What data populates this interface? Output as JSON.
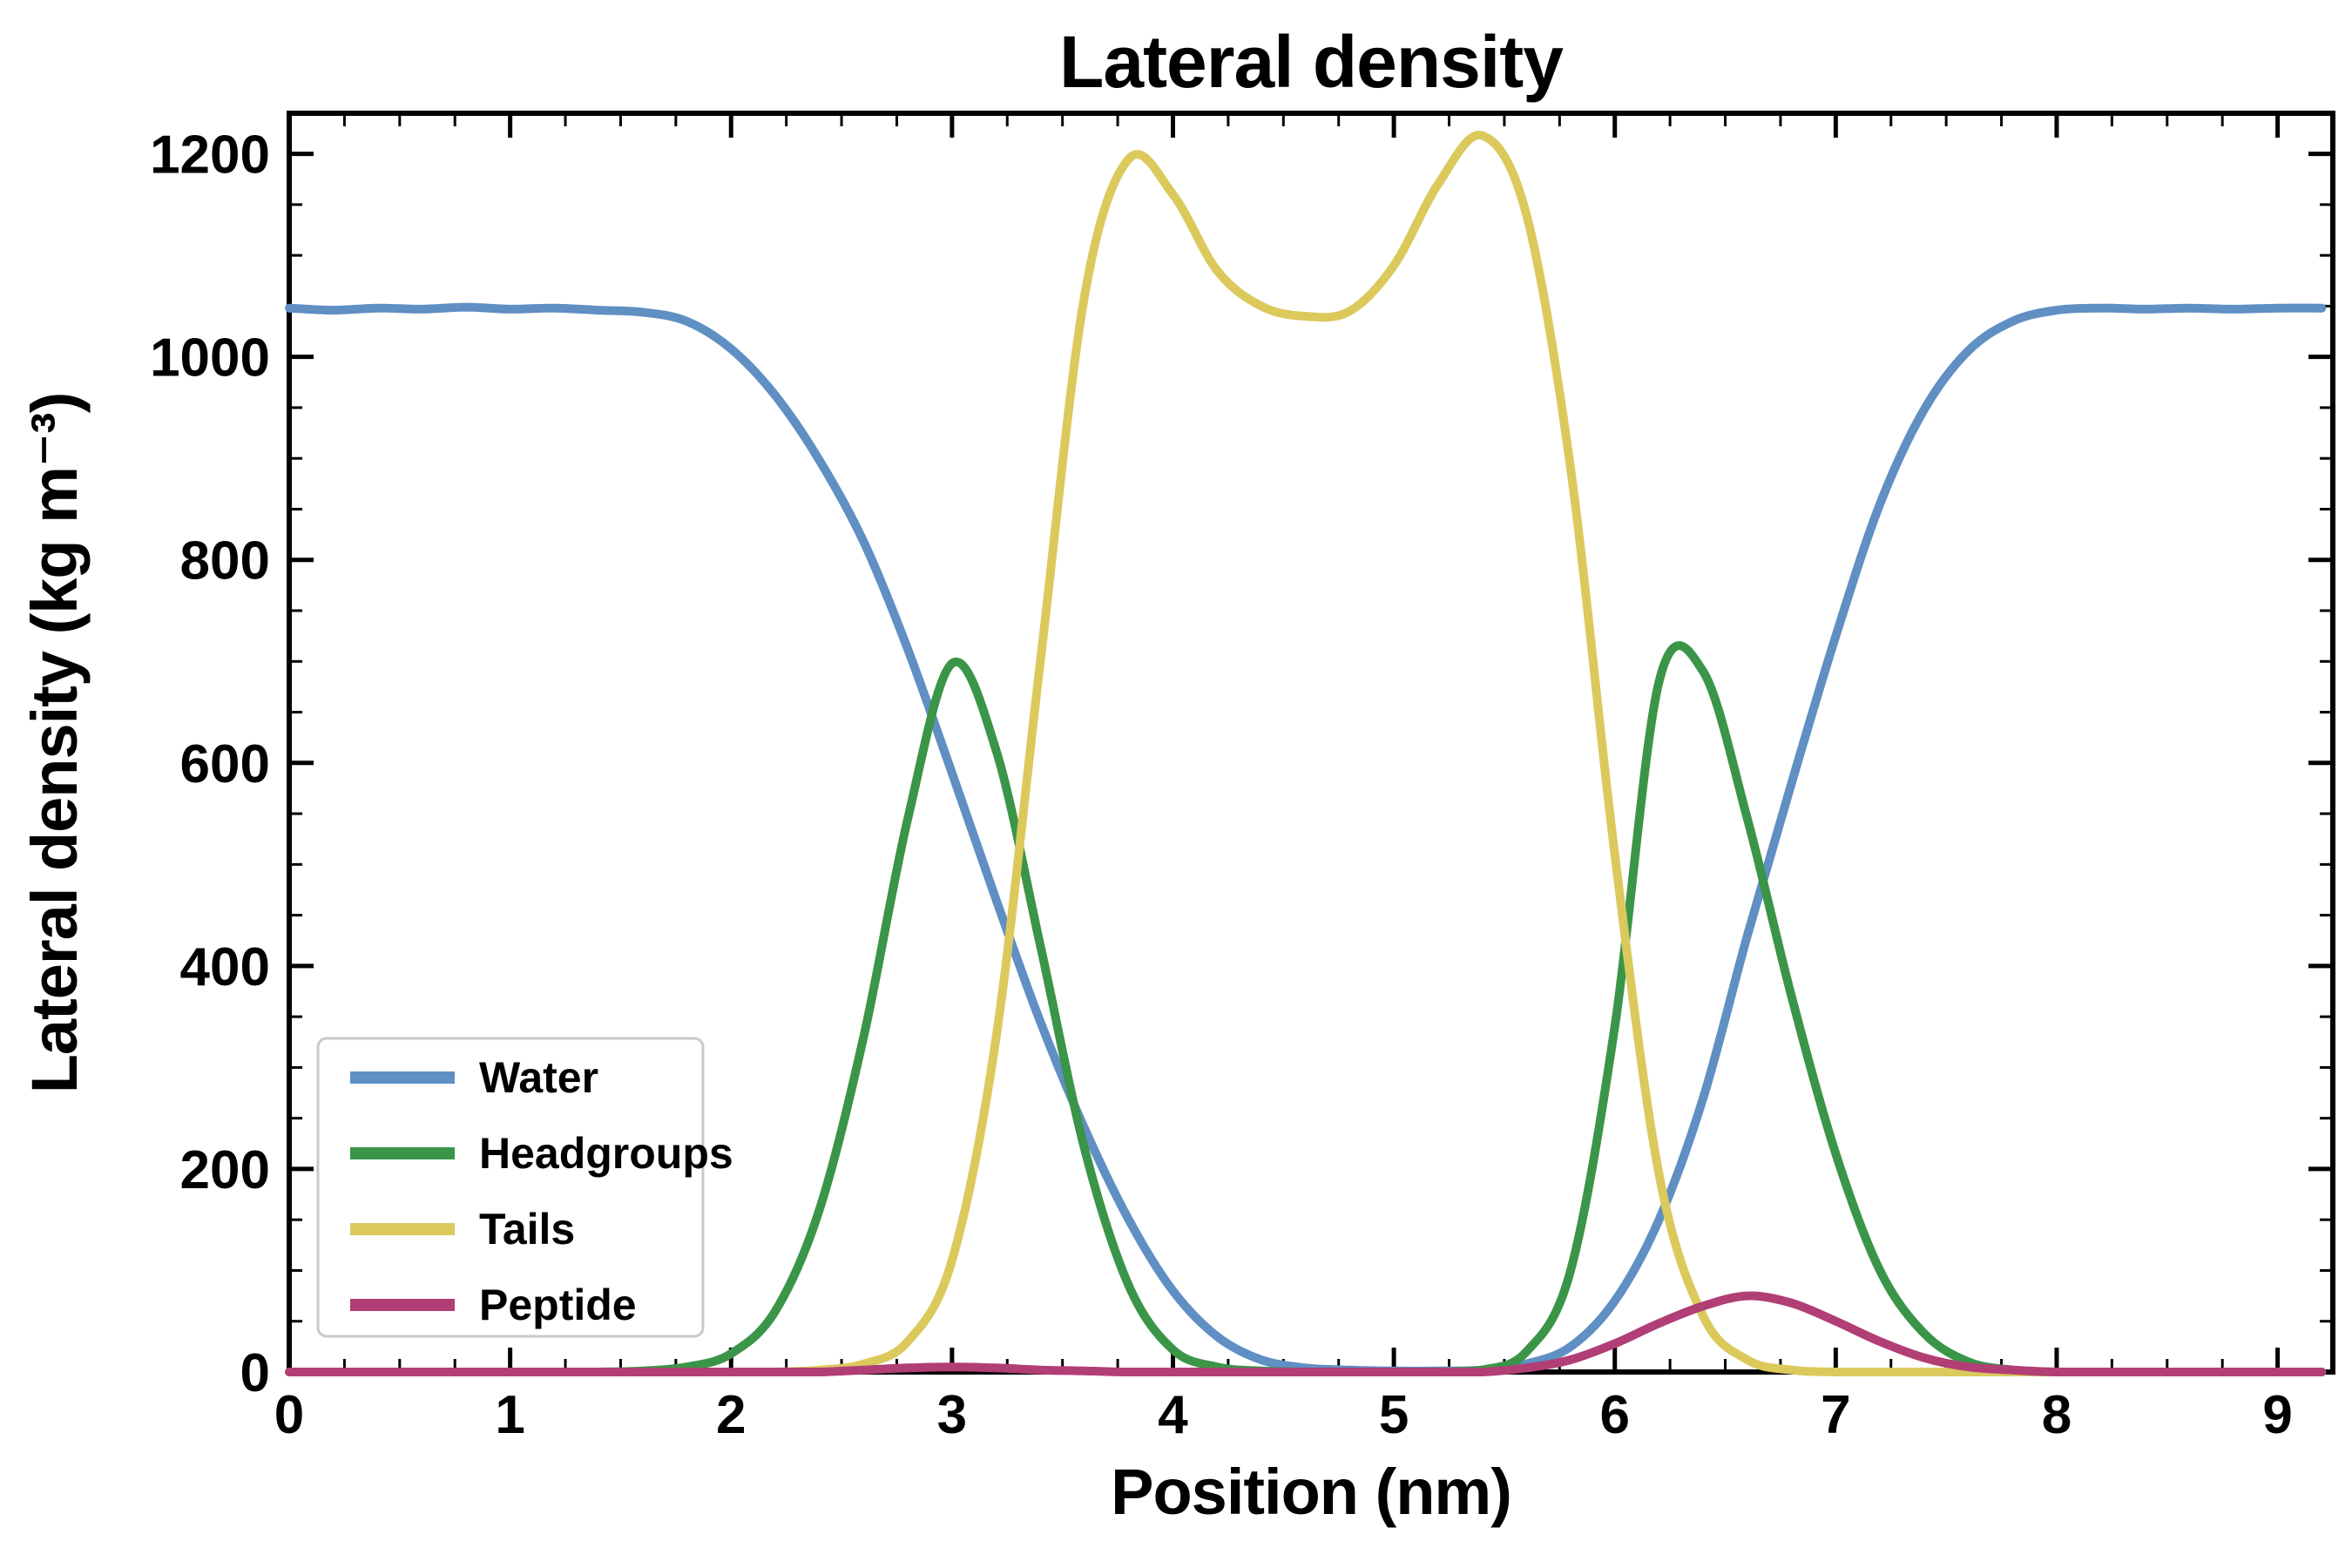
{
  "chart_data": {
    "type": "line",
    "title": "Lateral density",
    "xlabel": "Position (nm)",
    "ylabel": "Lateral density (kg m⁻³)",
    "xlim": [
      0,
      9.25
    ],
    "ylim": [
      0,
      1240
    ],
    "x_ticks": [
      0,
      1,
      2,
      3,
      4,
      5,
      6,
      7,
      8,
      9
    ],
    "y_ticks": [
      0,
      200,
      400,
      600,
      800,
      1000,
      1200
    ],
    "x_minor_step": 0.25,
    "y_minor_step": 50,
    "grid": false,
    "legend_position": "lower left",
    "background_color": "#ffffff",
    "spine_color": "#000000",
    "x": [
      0.0,
      0.2,
      0.4,
      0.6,
      0.8,
      1.0,
      1.2,
      1.4,
      1.6,
      1.8,
      2.0,
      2.2,
      2.4,
      2.6,
      2.8,
      3.0,
      3.2,
      3.4,
      3.6,
      3.8,
      4.0,
      4.2,
      4.4,
      4.6,
      4.8,
      5.0,
      5.2,
      5.4,
      5.6,
      5.8,
      6.0,
      6.2,
      6.4,
      6.6,
      6.8,
      7.0,
      7.2,
      7.4,
      7.6,
      7.8,
      8.0,
      8.2,
      8.4,
      8.6,
      8.8,
      9.0,
      9.2
    ],
    "series": [
      {
        "name": "Water",
        "color": "#5f8fc3",
        "values": [
          1048,
          1046,
          1048,
          1047,
          1049,
          1047,
          1048,
          1046,
          1044,
          1035,
          1008,
          962,
          898,
          818,
          712,
          590,
          465,
          345,
          240,
          150,
          80,
          35,
          12,
          4,
          2,
          1,
          1,
          2,
          8,
          25,
          70,
          150,
          270,
          430,
          580,
          725,
          855,
          948,
          1006,
          1035,
          1046,
          1048,
          1047,
          1048,
          1047,
          1048,
          1048
        ]
      },
      {
        "name": "Headgroups",
        "color": "#3a9548",
        "values": [
          0,
          0,
          0,
          0,
          0,
          0,
          0,
          0,
          1,
          5,
          18,
          60,
          160,
          330,
          545,
          698,
          612,
          420,
          220,
          85,
          22,
          5,
          1,
          0,
          0,
          0,
          0,
          2,
          20,
          100,
          340,
          680,
          690,
          545,
          370,
          215,
          100,
          38,
          10,
          2,
          0,
          0,
          0,
          0,
          0,
          0,
          0
        ]
      },
      {
        "name": "Tails",
        "color": "#dcc95c",
        "values": [
          0,
          0,
          0,
          0,
          0,
          0,
          0,
          0,
          0,
          0,
          0,
          0,
          2,
          8,
          30,
          110,
          330,
          700,
          1060,
          1195,
          1160,
          1085,
          1050,
          1040,
          1045,
          1090,
          1170,
          1218,
          1140,
          890,
          510,
          195,
          55,
          12,
          2,
          0,
          0,
          0,
          0,
          0,
          0,
          0,
          0,
          0,
          0,
          0,
          0
        ]
      },
      {
        "name": "Peptide",
        "color": "#b23e76",
        "values": [
          0,
          0,
          0,
          0,
          0,
          0,
          0,
          0,
          0,
          0,
          0,
          0,
          0,
          2,
          4,
          5,
          4,
          2,
          1,
          0,
          0,
          0,
          0,
          0,
          0,
          0,
          0,
          0,
          4,
          12,
          28,
          48,
          65,
          75,
          68,
          50,
          30,
          14,
          5,
          2,
          0,
          0,
          0,
          0,
          0,
          0,
          0
        ]
      }
    ]
  }
}
